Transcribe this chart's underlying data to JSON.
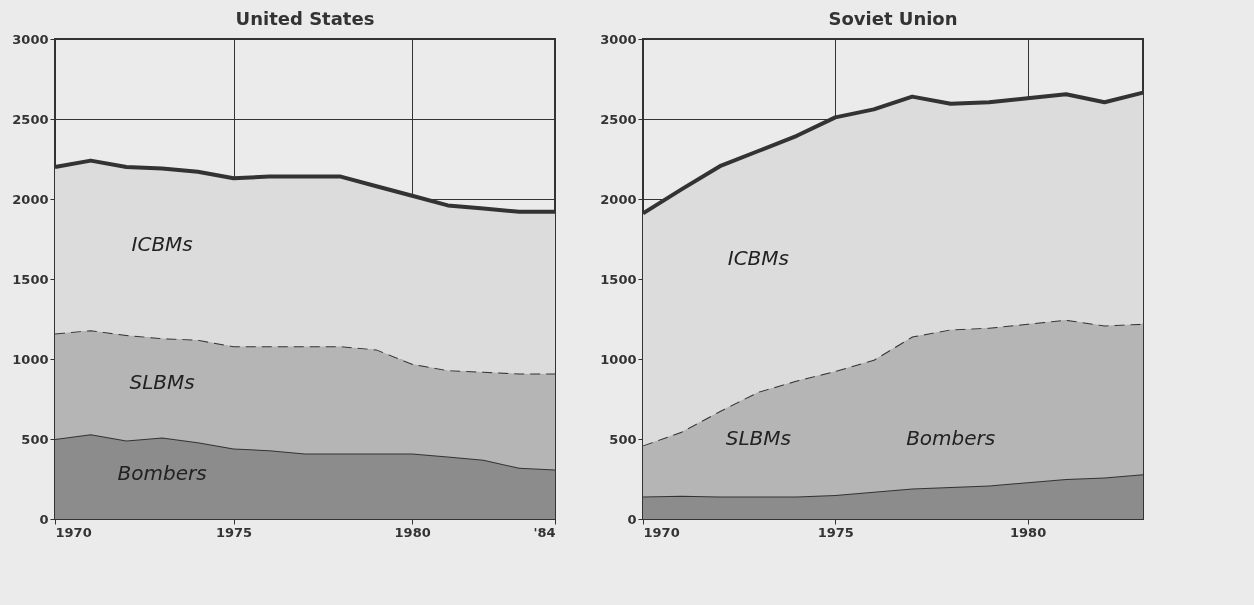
{
  "chart_data": [
    {
      "type": "area",
      "title": "United States",
      "stacked": true,
      "grid": true,
      "x": [
        1970,
        1971,
        1972,
        1973,
        1974,
        1975,
        1976,
        1977,
        1978,
        1979,
        1980,
        1981,
        1982,
        1983,
        1984
      ],
      "xlim": [
        1970,
        1984
      ],
      "xticks": [
        1970,
        1975,
        1980,
        {
          "value": 1984,
          "label": "'84"
        }
      ],
      "ylim": [
        0,
        3000
      ],
      "yticks": [
        0,
        500,
        1000,
        1500,
        2000,
        2500,
        3000
      ],
      "series": [
        {
          "name": "Bombers",
          "color": "#8c8c8c",
          "line_style": "solid",
          "values": [
            500,
            530,
            490,
            510,
            480,
            440,
            430,
            410,
            410,
            410,
            410,
            390,
            370,
            320,
            310
          ]
        },
        {
          "name": "SLBMs",
          "color": "#b5b5b5",
          "line_style": "dashed",
          "values": [
            660,
            650,
            660,
            620,
            640,
            640,
            650,
            670,
            670,
            650,
            560,
            540,
            550,
            590,
            600
          ]
        },
        {
          "name": "ICBMs",
          "color": "#dcdcdc",
          "line_style": "solid",
          "values": [
            1040,
            1060,
            1050,
            1060,
            1050,
            1050,
            1060,
            1060,
            1060,
            1020,
            1050,
            1030,
            1020,
            1010,
            1010
          ]
        }
      ]
    },
    {
      "type": "area",
      "title": "Soviet Union",
      "stacked": true,
      "grid": true,
      "x": [
        1970,
        1971,
        1972,
        1973,
        1974,
        1975,
        1976,
        1977,
        1978,
        1979,
        1980,
        1981,
        1982,
        1983
      ],
      "xlim": [
        1970,
        1983
      ],
      "xticks": [
        1970,
        1975,
        1980
      ],
      "ylim": [
        0,
        3000
      ],
      "yticks": [
        0,
        500,
        1000,
        1500,
        2000,
        2500,
        3000
      ],
      "series": [
        {
          "name": "Bombers",
          "color": "#8c8c8c",
          "line_style": "solid",
          "values": [
            140,
            145,
            140,
            140,
            140,
            150,
            170,
            190,
            200,
            210,
            230,
            250,
            260,
            280
          ]
        },
        {
          "name": "SLBMs",
          "color": "#b5b5b5",
          "line_style": "dashed",
          "values": [
            320,
            400,
            535,
            655,
            725,
            775,
            825,
            950,
            985,
            985,
            990,
            995,
            950,
            940
          ]
        },
        {
          "name": "ICBMs",
          "color": "#dcdcdc",
          "line_style": "solid",
          "values": [
            1450,
            1515,
            1530,
            1505,
            1530,
            1585,
            1565,
            1500,
            1410,
            1410,
            1410,
            1410,
            1395,
            1445
          ]
        }
      ]
    }
  ]
}
